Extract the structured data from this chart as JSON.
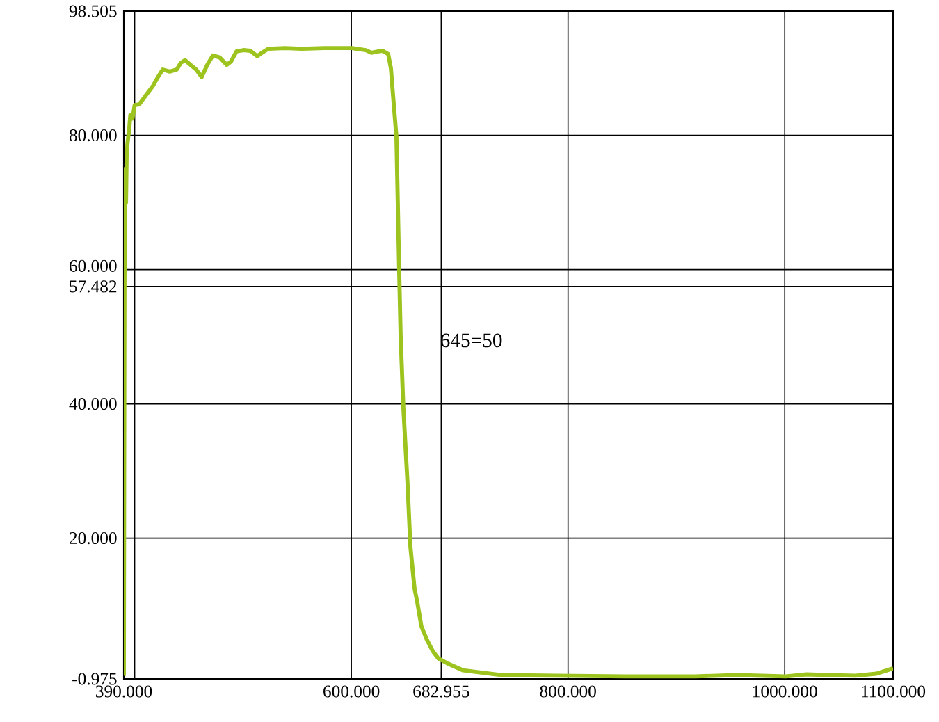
{
  "chart_data": {
    "type": "line",
    "xlim": [
      390,
      1100
    ],
    "ylim": [
      -0.975,
      98.505
    ],
    "xticks": [
      {
        "value": 390,
        "label": "390.000"
      },
      {
        "value": 400,
        "label": null
      },
      {
        "value": 600,
        "label": "600.000"
      },
      {
        "value": 682.955,
        "label": "682.955"
      },
      {
        "value": 800,
        "label": "800.000"
      },
      {
        "value": 1000,
        "label": "1000.000"
      },
      {
        "value": 1100,
        "label": "1100.000"
      }
    ],
    "yticks": [
      -0.975,
      {
        "value": 20,
        "label": "20.000"
      },
      {
        "value": 40,
        "label": "40.000"
      },
      57.482,
      {
        "value": 60,
        "label": "60.000"
      },
      {
        "value": 80,
        "label": "80.000"
      },
      98.505
    ],
    "grid": true,
    "marker": "none",
    "line_style": "solid",
    "annotations": [
      {
        "text": "645=50",
        "x": 645,
        "y": 50
      }
    ],
    "series": [
      {
        "color": "#9dc41e",
        "x": [
          390,
          390.3,
          390.6,
          391.3,
          392,
          392.6,
          393.5,
          395,
          396,
          398,
          400,
          404.1,
          410.5,
          417,
          420.8,
          425.9,
          432.4,
          438.8,
          442.6,
          446.5,
          451.6,
          456.8,
          461.9,
          467,
          472.2,
          478.6,
          485,
          489,
          494,
          500.4,
          506.8,
          513.2,
          518.4,
          523.5,
          538.9,
          554.3,
          574.9,
          600.5,
          613.4,
          618.5,
          624.9,
          628.8,
          634,
          636.5,
          639,
          641.6,
          644.2,
          645.5,
          648,
          651.9,
          654.5,
          658.3,
          660.9,
          664.7,
          669.9,
          675,
          680.1,
          689.1,
          703.2,
          718.6,
          737.9,
          789.3,
          853.5,
          917.6,
          956,
          1001,
          1020.3,
          1039.6,
          1065.3,
          1084.6,
          1100
        ],
        "values": [
          -0.5,
          30,
          58,
          75,
          70,
          77,
          79,
          81,
          83,
          82.5,
          84.5,
          84.6,
          86,
          87.4,
          88.5,
          89.8,
          89.5,
          89.8,
          90.8,
          91.2,
          90.5,
          89.8,
          88.7,
          90.5,
          91.9,
          91.6,
          90.5,
          91,
          92.5,
          92.7,
          92.6,
          91.8,
          92.4,
          92.9,
          93,
          92.9,
          93,
          93,
          92.7,
          92.3,
          92.5,
          92.6,
          92.1,
          90,
          84.9,
          79.8,
          59.4,
          50,
          39.4,
          28,
          18.7,
          12.5,
          10.4,
          6.8,
          4.8,
          3.2,
          2.1,
          1.3,
          0.3,
          0,
          -0.4,
          -0.5,
          -0.6,
          -0.6,
          -0.4,
          -0.6,
          -0.3,
          -0.4,
          -0.5,
          -0.2,
          0.6
        ]
      }
    ]
  }
}
